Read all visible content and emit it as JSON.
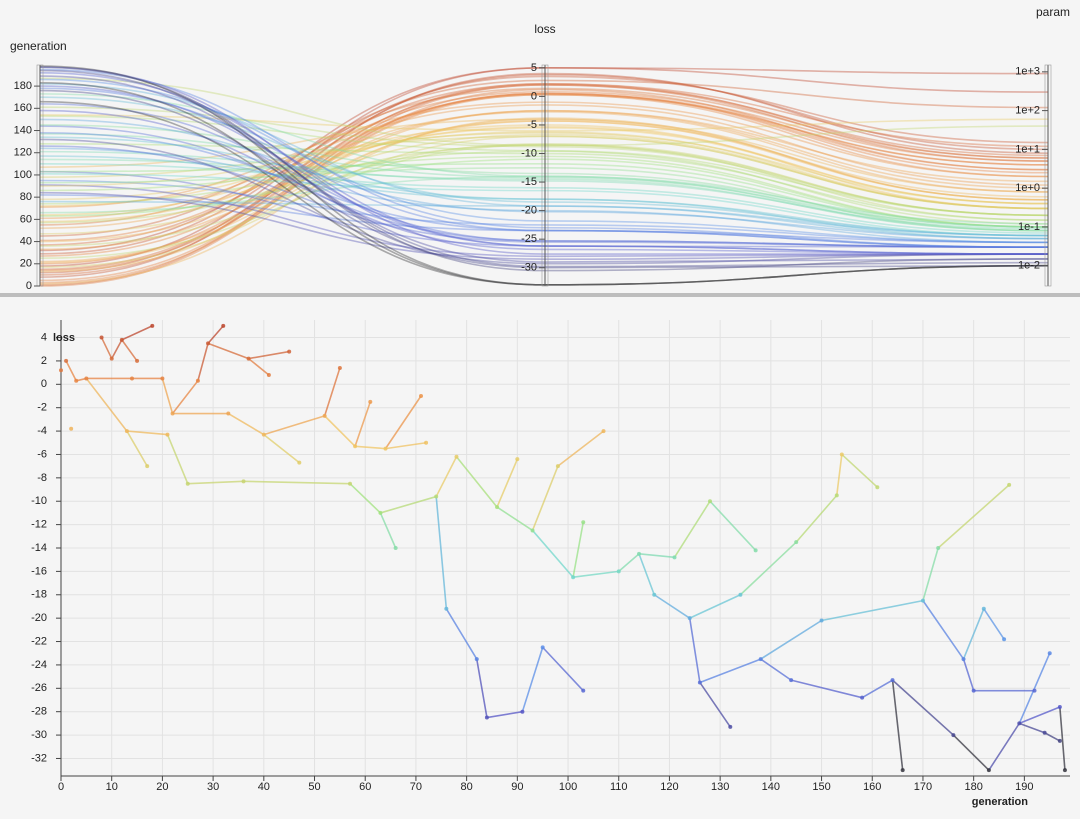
{
  "chart_data": [
    {
      "type": "parallel",
      "colormap": [
        "#333333",
        "#5656c8",
        "#5a8ee8",
        "#6fd6cf",
        "#9de27e",
        "#f0c865",
        "#ea8a45",
        "#b8402c"
      ],
      "dimensions": [
        {
          "name": "generation",
          "lim": [
            0,
            199
          ],
          "ticks": [
            0,
            20,
            40,
            60,
            80,
            100,
            120,
            140,
            160,
            180
          ],
          "values": [
            0,
            1,
            2,
            3,
            5,
            8,
            10,
            12,
            15,
            18,
            14,
            20,
            13,
            17,
            22,
            27,
            29,
            32,
            33,
            37,
            41,
            45,
            21,
            25,
            36,
            40,
            47,
            52,
            55,
            58,
            61,
            64,
            71,
            72,
            57,
            63,
            66,
            74,
            78,
            76,
            82,
            84,
            91,
            95,
            103,
            86,
            90,
            93,
            98,
            107,
            101,
            103,
            110,
            114,
            117,
            121,
            124,
            128,
            137,
            126,
            132,
            138,
            144,
            134,
            145,
            153,
            154,
            161,
            150,
            158,
            164,
            166,
            170,
            173,
            187,
            178,
            182,
            186,
            180,
            192,
            176,
            183,
            189,
            195,
            197,
            198,
            194,
            197
          ]
        },
        {
          "name": "loss",
          "lim": [
            -33.2,
            5.5
          ],
          "ticks": [
            5,
            0,
            -5,
            -10,
            -15,
            -20,
            -25,
            -30
          ],
          "values": [
            1.2,
            2.0,
            -3.8,
            0.3,
            0.5,
            4.0,
            2.2,
            3.8,
            2.0,
            5.0,
            0.5,
            0.5,
            -4.0,
            -7.0,
            -2.5,
            0.3,
            3.5,
            5.0,
            -2.5,
            2.2,
            0.8,
            2.8,
            -4.3,
            -8.5,
            -8.3,
            -4.3,
            -6.7,
            -2.7,
            1.4,
            -5.3,
            -1.5,
            -5.5,
            -1.0,
            -5.0,
            -8.5,
            -11,
            -14,
            -9.6,
            -6.2,
            -19.2,
            -23.5,
            -28.5,
            -28.0,
            -22.5,
            -26.2,
            -10.5,
            -6.4,
            -12.5,
            -7.0,
            -4.0,
            -16.5,
            -11.8,
            -16.0,
            -14.5,
            -18.0,
            -14.8,
            -20.0,
            -10.0,
            -14.2,
            -25.5,
            -29.3,
            -23.5,
            -25.3,
            -18.0,
            -13.5,
            -9.5,
            -6.0,
            -8.8,
            -20.2,
            -26.8,
            -25.3,
            -33.0,
            -18.5,
            -14.0,
            -8.6,
            -23.5,
            -19.2,
            -21.8,
            -26.2,
            -26.2,
            -30.0,
            -33.0,
            -29.0,
            -23.0,
            -27.6,
            -33.0,
            -29.8,
            -30.5
          ]
        },
        {
          "name": "param",
          "log": true,
          "lim": [
            0.003,
            1500
          ],
          "ticks": [
            {
              "value": 0.01,
              "label": "1e-2"
            },
            {
              "value": 0.1,
              "label": "1e-1"
            },
            {
              "value": 1,
              "label": "1e+0"
            },
            {
              "value": 10,
              "label": "1e+1"
            },
            {
              "value": 100,
              "label": "1e+2"
            },
            {
              "value": 1000,
              "label": "1e+3"
            }
          ],
          "values": [
            3,
            5,
            0.5,
            2,
            4,
            8,
            6,
            10,
            7,
            300,
            3,
            2.5,
            0.8,
            0.3,
            1.5,
            4,
            15,
            900,
            1,
            12,
            5,
            120,
            0.6,
            0.2,
            0.2,
            0.5,
            0.3,
            0.8,
            6,
            0.4,
            1.2,
            0.4,
            2,
            0.3,
            0.15,
            0.1,
            0.08,
            0.12,
            0.3,
            0.05,
            0.03,
            0.02,
            0.02,
            0.04,
            0.03,
            0.1,
            0.4,
            0.08,
            0.3,
            0.5,
            0.06,
            0.1,
            0.07,
            0.08,
            0.05,
            0.09,
            0.04,
            0.15,
            0.1,
            0.03,
            0.02,
            0.04,
            0.03,
            0.06,
            0.1,
            0.2,
            60,
            0.2,
            0.05,
            0.02,
            0.03,
            0.01,
            0.06,
            0.12,
            40,
            0.03,
            0.06,
            0.04,
            0.02,
            0.02,
            0.01,
            0.01,
            0.015,
            0.03,
            0.02,
            0.01,
            0.012,
            0.015
          ]
        }
      ]
    },
    {
      "type": "lineage",
      "xlabel": "generation",
      "ylabel": "loss",
      "grid": true,
      "colormap": [
        "#333333",
        "#5656c8",
        "#5a8ee8",
        "#6fd6cf",
        "#9de27e",
        "#f0c865",
        "#ea8a45",
        "#b8402c"
      ],
      "xlim": [
        0,
        199
      ],
      "ylim": [
        -33.5,
        5.5
      ],
      "xticks": [
        0,
        10,
        20,
        30,
        40,
        50,
        60,
        70,
        80,
        90,
        100,
        110,
        120,
        130,
        140,
        150,
        160,
        170,
        180,
        190
      ],
      "yticks": [
        4,
        2,
        0,
        -2,
        -4,
        -6,
        -8,
        -10,
        -12,
        -14,
        -16,
        -18,
        -20,
        -22,
        -24,
        -26,
        -28,
        -30,
        -32
      ],
      "x": [
        0,
        1,
        2,
        3,
        5,
        8,
        10,
        12,
        15,
        18,
        14,
        20,
        13,
        17,
        22,
        27,
        29,
        32,
        33,
        37,
        41,
        45,
        21,
        25,
        36,
        40,
        47,
        52,
        55,
        58,
        61,
        64,
        71,
        72,
        57,
        63,
        66,
        74,
        78,
        76,
        82,
        84,
        91,
        95,
        103,
        86,
        90,
        93,
        98,
        107,
        101,
        103,
        110,
        114,
        117,
        121,
        124,
        128,
        137,
        126,
        132,
        138,
        144,
        134,
        145,
        153,
        154,
        161,
        150,
        158,
        164,
        166,
        170,
        173,
        187,
        178,
        182,
        186,
        180,
        192,
        176,
        183,
        189,
        195,
        197,
        198,
        194,
        197
      ],
      "y": [
        1.2,
        2.0,
        -3.8,
        0.3,
        0.5,
        4.0,
        2.2,
        3.8,
        2.0,
        5.0,
        0.5,
        0.5,
        -4.0,
        -7.0,
        -2.5,
        0.3,
        3.5,
        5.0,
        -2.5,
        2.2,
        0.8,
        2.8,
        -4.3,
        -8.5,
        -8.3,
        -4.3,
        -6.7,
        -2.7,
        1.4,
        -5.3,
        -1.5,
        -5.5,
        -1.0,
        -5.0,
        -8.5,
        -11,
        -14,
        -9.6,
        -6.2,
        -19.2,
        -23.5,
        -28.5,
        -28.0,
        -22.5,
        -26.2,
        -10.5,
        -6.4,
        -12.5,
        -7.0,
        -4.0,
        -16.5,
        -11.8,
        -16.0,
        -14.5,
        -18.0,
        -14.8,
        -20.0,
        -10.0,
        -14.2,
        -25.5,
        -29.3,
        -23.5,
        -25.3,
        -18.0,
        -13.5,
        -9.5,
        -6.0,
        -8.8,
        -20.2,
        -26.8,
        -25.3,
        -33.0,
        -18.5,
        -14.0,
        -8.6,
        -23.5,
        -19.2,
        -21.8,
        -26.2,
        -26.2,
        -30.0,
        -33.0,
        -29.0,
        -23.0,
        -27.6,
        -33.0,
        -29.8,
        -30.5
      ],
      "parent": [
        null,
        null,
        null,
        1,
        3,
        null,
        5,
        6,
        7,
        7,
        4,
        10,
        4,
        12,
        11,
        14,
        15,
        16,
        14,
        16,
        19,
        19,
        12,
        22,
        23,
        18,
        25,
        25,
        27,
        27,
        29,
        29,
        31,
        31,
        24,
        34,
        35,
        35,
        37,
        37,
        39,
        40,
        41,
        42,
        43,
        38,
        45,
        45,
        47,
        48,
        47,
        50,
        50,
        52,
        53,
        53,
        54,
        55,
        57,
        56,
        59,
        59,
        61,
        56,
        63,
        64,
        65,
        66,
        61,
        62,
        69,
        70,
        68,
        72,
        73,
        72,
        75,
        76,
        75,
        78,
        70,
        80,
        81,
        82,
        82,
        84,
        82,
        86
      ]
    }
  ]
}
